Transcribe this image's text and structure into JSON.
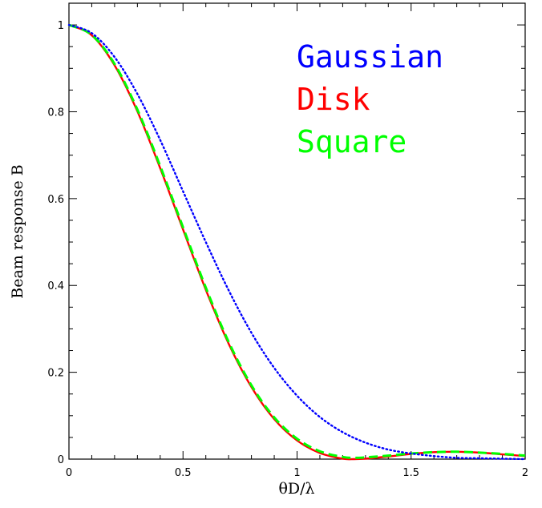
{
  "chart_data": {
    "type": "line",
    "title": "",
    "xlabel": "θD/λ",
    "ylabel": "Beam response B",
    "xlim": [
      0,
      2
    ],
    "ylim": [
      0,
      1.05
    ],
    "x_ticks": [
      0,
      0.5,
      1,
      1.5,
      2
    ],
    "y_ticks": [
      0,
      0.2,
      0.4,
      0.6,
      0.8,
      1
    ],
    "x_tick_labels": [
      "0",
      "0.5",
      "1",
      "1.5",
      "2"
    ],
    "y_tick_labels": [
      "0",
      "0.2",
      "0.4",
      "0.6",
      "0.8",
      "1"
    ],
    "grid": false,
    "legend_placement": "top-right",
    "series": [
      {
        "name": "Gaussian",
        "color": "#0000ff",
        "style": "dotted",
        "x": [
          0,
          0.1,
          0.2,
          0.3,
          0.4,
          0.5,
          0.6,
          0.7,
          0.8,
          0.9,
          1.0,
          1.1,
          1.2,
          1.3,
          1.4,
          1.5,
          1.6,
          1.7,
          1.8,
          1.9,
          2.0
        ],
        "y": [
          1.0,
          0.981,
          0.926,
          0.841,
          0.735,
          0.617,
          0.5,
          0.389,
          0.291,
          0.21,
          0.146,
          0.097,
          0.062,
          0.038,
          0.022,
          0.013,
          0.007,
          0.003,
          0.002,
          0.001,
          0.0
        ]
      },
      {
        "name": "Disk",
        "color": "#ff0000",
        "style": "solid",
        "x": [
          0,
          0.1,
          0.2,
          0.3,
          0.4,
          0.5,
          0.6,
          0.7,
          0.8,
          0.9,
          1.0,
          1.1,
          1.2,
          1.25,
          1.3,
          1.4,
          1.5,
          1.6,
          1.7,
          1.8,
          1.9,
          2.0
        ],
        "y": [
          1.0,
          0.976,
          0.907,
          0.801,
          0.67,
          0.529,
          0.39,
          0.266,
          0.166,
          0.092,
          0.043,
          0.014,
          0.001,
          0.0,
          0.001,
          0.006,
          0.012,
          0.016,
          0.017,
          0.015,
          0.011,
          0.007
        ]
      },
      {
        "name": "Square",
        "color": "#00ff00",
        "style": "dashed",
        "x": [
          0,
          0.1,
          0.2,
          0.3,
          0.4,
          0.5,
          0.6,
          0.7,
          0.8,
          0.9,
          1.0,
          1.1,
          1.2,
          1.25,
          1.3,
          1.4,
          1.5,
          1.6,
          1.7,
          1.8,
          1.9,
          2.0
        ],
        "y": [
          1.0,
          0.977,
          0.91,
          0.805,
          0.675,
          0.534,
          0.395,
          0.27,
          0.17,
          0.096,
          0.047,
          0.018,
          0.005,
          0.003,
          0.004,
          0.008,
          0.013,
          0.016,
          0.017,
          0.015,
          0.012,
          0.008
        ]
      }
    ]
  }
}
